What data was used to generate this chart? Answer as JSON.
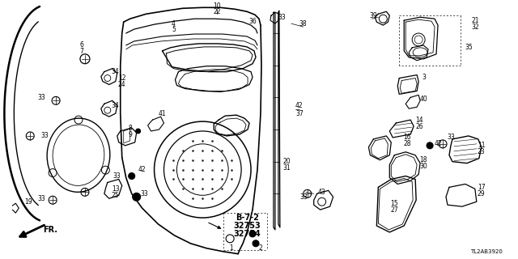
{
  "bg_color": "#ffffff",
  "diagram_id": "TL2AB3920",
  "figsize": [
    6.4,
    3.2
  ],
  "dpi": 100
}
